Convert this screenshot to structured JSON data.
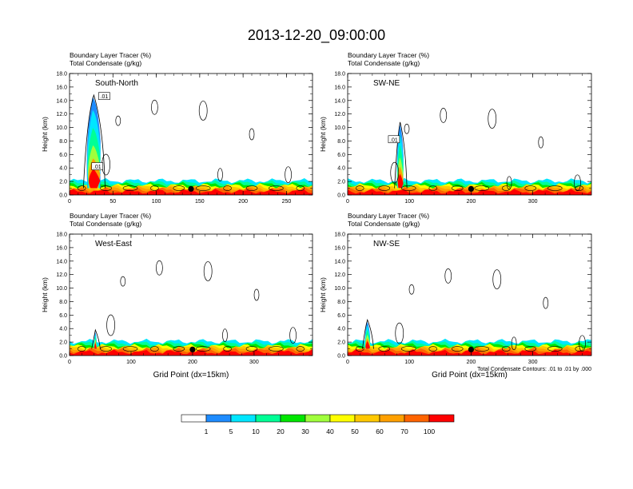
{
  "title": "2013-12-20_09:00:00",
  "footnote": "Total Condensate Contours: .01 to .01 by .000",
  "chart_data": [
    {
      "type": "heatmap",
      "panel_label": "South-North",
      "header_line1": "Boundary Layer Tracer   (%)",
      "header_line2": "Total Condensate   (g/kg)",
      "ylabel": "Height (km)",
      "xlabel": "",
      "xlim": [
        0,
        280
      ],
      "ylim": [
        0,
        18
      ],
      "xticks": [
        0,
        50,
        100,
        150,
        200,
        250
      ],
      "yticks": [
        0,
        2,
        4,
        6,
        8,
        10,
        12,
        14,
        16,
        18
      ],
      "ytick_labels": [
        "0.0",
        "2.0",
        "4.0",
        "6.0",
        "8.0",
        "10.0",
        "12.0",
        "14.0",
        "16.0",
        "18.0"
      ],
      "marker_x": 140,
      "contour_labels": [
        {
          "x": 40,
          "y": 14.6,
          "text": ".01"
        },
        {
          "x": 32,
          "y": 4.2,
          "text": ".01"
        }
      ],
      "plume_x": [
        20,
        28,
        35
      ],
      "plume_top_km": 14.5
    },
    {
      "type": "heatmap",
      "panel_label": "SW-NE",
      "header_line1": "Boundary Layer Tracer   (%)",
      "header_line2": "Total Condensate   (g/kg)",
      "ylabel": "Height (km)",
      "xlabel": "",
      "xlim": [
        0,
        395
      ],
      "ylim": [
        0,
        18
      ],
      "xticks": [
        0,
        100,
        200,
        300
      ],
      "yticks": [
        0,
        2,
        4,
        6,
        8,
        10,
        12,
        14,
        16,
        18
      ],
      "ytick_labels": [
        "0.0",
        "2.0",
        "4.0",
        "6.0",
        "8.0",
        "10.0",
        "12.0",
        "14.0",
        "16.0",
        "18.0"
      ],
      "marker_x": 200,
      "contour_labels": [
        {
          "x": 75,
          "y": 8.2,
          "text": ".01"
        }
      ],
      "plume_x": [
        80,
        85,
        90
      ],
      "plume_top_km": 10.5
    },
    {
      "type": "heatmap",
      "panel_label": "West-East",
      "header_line1": "Boundary Layer Tracer   (%)",
      "header_line2": "Total Condensate   (g/kg)",
      "ylabel": "Height (km)",
      "xlabel": "Grid Point (dx=15km)",
      "xlim": [
        0,
        395
      ],
      "ylim": [
        0,
        18
      ],
      "xticks": [
        0,
        100,
        200,
        300
      ],
      "yticks": [
        0,
        2,
        4,
        6,
        8,
        10,
        12,
        14,
        16,
        18
      ],
      "ytick_labels": [
        "0.0",
        "2.0",
        "4.0",
        "6.0",
        "8.0",
        "10.0",
        "12.0",
        "14.0",
        "16.0",
        "18.0"
      ],
      "marker_x": 200,
      "contour_labels": [],
      "plume_x": [
        40,
        42,
        44
      ],
      "plume_top_km": 3.5
    },
    {
      "type": "heatmap",
      "panel_label": "NW-SE",
      "header_line1": "Boundary Layer Tracer   (%)",
      "header_line2": "Total Condensate   (g/kg)",
      "ylabel": "Height (km)",
      "xlabel": "Grid Point (dx=15km)",
      "xlim": [
        0,
        395
      ],
      "ylim": [
        0,
        18
      ],
      "xticks": [
        0,
        100,
        200,
        300
      ],
      "yticks": [
        0,
        2,
        4,
        6,
        8,
        10,
        12,
        14,
        16,
        18
      ],
      "ytick_labels": [
        "0.0",
        "2.0",
        "4.0",
        "6.0",
        "8.0",
        "10.0",
        "12.0",
        "14.0",
        "16.0",
        "18.0"
      ],
      "marker_x": 200,
      "contour_labels": [],
      "plume_x": [
        28,
        32,
        36
      ],
      "plume_top_km": 5.0
    }
  ],
  "colorbar": {
    "labels": [
      "1",
      "5",
      "10",
      "20",
      "30",
      "40",
      "50",
      "60",
      "70",
      "100"
    ],
    "colors": [
      "#ffffff",
      "#1e8cff",
      "#00e6ff",
      "#00ff96",
      "#00e600",
      "#a0ff3c",
      "#ffff00",
      "#ffc800",
      "#ffa000",
      "#ff6400",
      "#ff0000"
    ]
  }
}
